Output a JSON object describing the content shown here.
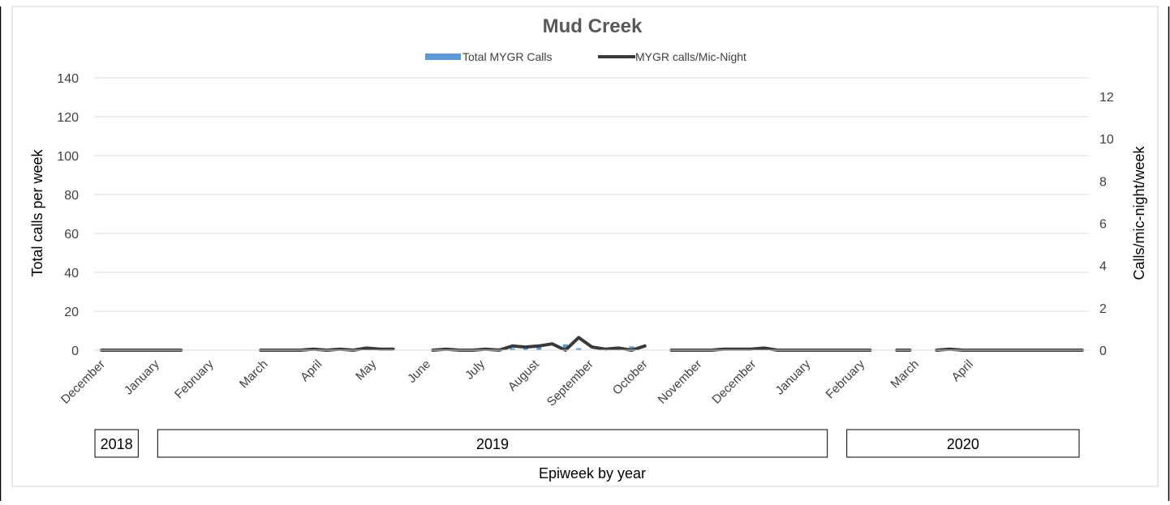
{
  "chart_data": {
    "type": "bar+line",
    "title": "Mud Creek",
    "xlabel": "Epiweek by year",
    "ylabel_left": "Total calls per week",
    "ylabel_right": "Calls/mic-night/week",
    "ylim_left": [
      0,
      140
    ],
    "yticks_left": [
      0,
      20,
      40,
      60,
      80,
      100,
      120,
      140
    ],
    "ylim_right": [
      0,
      14
    ],
    "yticks_right": [
      0,
      2,
      4,
      6,
      8,
      10,
      12
    ],
    "grid": true,
    "legend": "top",
    "months": [
      "December",
      "January",
      "February",
      "March",
      "April",
      "May",
      "June",
      "July",
      "August",
      "September",
      "October",
      "November",
      "December",
      "January",
      "February",
      "March",
      "April"
    ],
    "years": [
      {
        "label": "2018",
        "start_week": 0,
        "end_week": 4
      },
      {
        "label": "2019",
        "start_week": 4,
        "end_week": 56
      },
      {
        "label": "2020",
        "start_week": 56,
        "end_week": 75
      }
    ],
    "series": [
      {
        "name": "Total MYGR Calls",
        "kind": "bar",
        "axis": "left",
        "color": "#5b9bd5",
        "values": [
          0,
          0,
          0,
          0,
          0,
          0,
          0,
          null,
          null,
          null,
          null,
          null,
          0,
          0,
          0,
          0,
          0,
          0,
          0,
          0,
          0,
          0,
          0,
          0,
          null,
          0,
          0,
          0,
          0,
          0,
          1,
          1,
          1,
          2,
          0,
          3,
          1,
          0,
          1,
          0,
          2,
          null,
          0,
          0,
          0,
          0,
          0,
          0,
          0,
          0,
          0,
          0,
          0,
          0,
          0,
          0,
          null,
          0,
          0,
          null,
          0,
          0,
          0,
          0,
          0,
          0,
          0,
          0,
          0,
          0,
          0,
          0,
          0,
          0,
          0
        ]
      },
      {
        "name": "MYGR calls/Mic-Night",
        "kind": "line",
        "axis": "right",
        "color": "#3a3a3a",
        "values": [
          0,
          0,
          0,
          0,
          0,
          0,
          0,
          null,
          null,
          null,
          null,
          null,
          0,
          0,
          0,
          0,
          0.05,
          0,
          0.05,
          0,
          0.1,
          0.05,
          0.05,
          null,
          null,
          0,
          0.05,
          0,
          0,
          0.05,
          0,
          0.2,
          0.15,
          0.2,
          0.3,
          0,
          0.6,
          0.15,
          0.05,
          0.1,
          0,
          0.2,
          null,
          0,
          0,
          0,
          0,
          0.05,
          0.05,
          0.05,
          0.1,
          0,
          0,
          0,
          0,
          0,
          0,
          0,
          0,
          null,
          0,
          0,
          null,
          0,
          0.05,
          0,
          0,
          0,
          0,
          0,
          0,
          0,
          0,
          0,
          0
        ]
      }
    ]
  }
}
